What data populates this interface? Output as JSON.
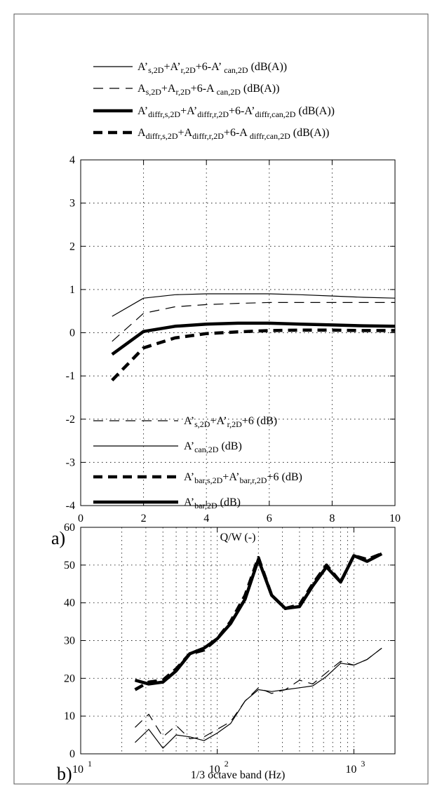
{
  "chart_data": [
    {
      "panel": "a)",
      "type": "line",
      "xlabel": "Q/W (-)",
      "ylabel": "",
      "xlim": [
        0,
        10
      ],
      "ylim": [
        -4,
        4
      ],
      "xticks": [
        "0",
        "2",
        "4",
        "6",
        "8",
        "10"
      ],
      "yticks": [
        "-4",
        "-3",
        "-2",
        "-1",
        "0",
        "1",
        "2",
        "3",
        "4"
      ],
      "grid": true,
      "legend_position": "above",
      "series": [
        {
          "style": "thin-solid",
          "legend": [
            [
              "A’",
              ""
            ],
            [
              "s,2D",
              "sub"
            ],
            [
              "+A’",
              ""
            ],
            [
              "r,2D",
              "sub"
            ],
            [
              "+6-A’",
              ""
            ],
            [
              " can,2D",
              "sub"
            ],
            [
              " (dB(A))",
              ""
            ]
          ],
          "x": [
            1,
            2,
            3,
            4,
            5,
            6,
            7,
            8,
            9,
            10
          ],
          "y": [
            0.38,
            0.8,
            0.88,
            0.9,
            0.9,
            0.9,
            0.88,
            0.85,
            0.82,
            0.8
          ]
        },
        {
          "style": "thin-dashed",
          "legend": [
            [
              "A",
              ""
            ],
            [
              "s,2D",
              "sub"
            ],
            [
              "+A",
              ""
            ],
            [
              "r,2D",
              "sub"
            ],
            [
              "+6-A",
              ""
            ],
            [
              " can,2D",
              "sub"
            ],
            [
              " (dB(A))",
              ""
            ]
          ],
          "x": [
            1,
            2,
            3,
            4,
            5,
            6,
            7,
            8,
            9,
            10
          ],
          "y": [
            -0.2,
            0.45,
            0.6,
            0.65,
            0.68,
            0.7,
            0.7,
            0.7,
            0.7,
            0.7
          ]
        },
        {
          "style": "thick-solid",
          "legend": [
            [
              "A’",
              ""
            ],
            [
              "diffr,s,2D",
              "sub"
            ],
            [
              "+A’",
              ""
            ],
            [
              "diffr,r,2D",
              "sub"
            ],
            [
              "+6-A’",
              ""
            ],
            [
              "diffr,can,2D",
              "sub"
            ],
            [
              " (dB(A))",
              ""
            ]
          ],
          "x": [
            1,
            2,
            3,
            4,
            5,
            6,
            7,
            8,
            9,
            10
          ],
          "y": [
            -0.5,
            0.03,
            0.15,
            0.2,
            0.22,
            0.22,
            0.2,
            0.18,
            0.16,
            0.15
          ]
        },
        {
          "style": "thick-dashed",
          "legend": [
            [
              "A",
              ""
            ],
            [
              "diffr,s,2D",
              "sub"
            ],
            [
              "+A",
              ""
            ],
            [
              "diffr,r,2D",
              "sub"
            ],
            [
              "+6-A",
              ""
            ],
            [
              " diffr,can,2D",
              "sub"
            ],
            [
              " (dB(A))",
              ""
            ]
          ],
          "x": [
            1,
            2,
            3,
            4,
            5,
            6,
            7,
            8,
            9,
            10
          ],
          "y": [
            -1.1,
            -0.35,
            -0.12,
            -0.02,
            0.02,
            0.05,
            0.06,
            0.06,
            0.05,
            0.05
          ]
        }
      ]
    },
    {
      "panel": "b)",
      "type": "line",
      "xscale": "log",
      "xlabel": "1/3 octave band (Hz)",
      "ylabel": "",
      "xlim": [
        10,
        2000
      ],
      "ylim": [
        0,
        60
      ],
      "xticks": [
        {
          "base": "10",
          "exp": "1"
        },
        {
          "base": "10",
          "exp": "2"
        },
        {
          "base": "10",
          "exp": "3"
        }
      ],
      "yticks": [
        "0",
        "10",
        "20",
        "30",
        "40",
        "50",
        "60"
      ],
      "grid": true,
      "legend_position": "above",
      "series": [
        {
          "style": "thin-dashed",
          "legend": [
            [
              "A’",
              ""
            ],
            [
              "s,2D",
              "sub"
            ],
            [
              "+A’",
              ""
            ],
            [
              "r,2D",
              "sub"
            ],
            [
              "+6 (dB)",
              ""
            ]
          ],
          "x": [
            25,
            31.5,
            40,
            50,
            63,
            80,
            100,
            125,
            160,
            200,
            250,
            315,
            400,
            500,
            630,
            800,
            1000,
            1250,
            1600
          ],
          "y": [
            7,
            10.5,
            4.5,
            7.5,
            4,
            4.5,
            6.5,
            8.5,
            14,
            17.5,
            16,
            17,
            19.5,
            18.5,
            21.5,
            24.5,
            23.5,
            25,
            28
          ]
        },
        {
          "style": "thin-solid",
          "legend": [
            [
              "A’",
              ""
            ],
            [
              "can,2D",
              "sub"
            ],
            [
              " (dB)",
              ""
            ]
          ],
          "x": [
            25,
            31.5,
            40,
            50,
            63,
            80,
            100,
            125,
            160,
            200,
            250,
            315,
            400,
            500,
            630,
            800,
            1000,
            1250,
            1600
          ],
          "y": [
            3,
            6.5,
            1.5,
            5,
            4.5,
            3.5,
            5.5,
            8,
            14,
            17,
            16.5,
            17,
            17.5,
            18,
            20.5,
            24,
            23.5,
            25,
            28
          ]
        },
        {
          "style": "thick-dashed",
          "legend": [
            [
              "A’",
              ""
            ],
            [
              "bar,s,2D",
              "sub"
            ],
            [
              "+A’",
              ""
            ],
            [
              "bar,r,2D",
              "sub"
            ],
            [
              "+6 (dB)",
              ""
            ]
          ],
          "x": [
            25,
            31.5,
            40,
            50,
            63,
            80,
            100,
            125,
            160,
            200,
            250,
            315,
            400,
            500,
            630,
            800,
            1000,
            1250,
            1600
          ],
          "y": [
            17,
            19,
            19.5,
            22.5,
            26.5,
            27.5,
            30.5,
            35,
            42,
            52,
            42,
            38.5,
            39.5,
            45,
            50,
            45.5,
            52.5,
            51.5,
            53
          ]
        },
        {
          "style": "thick-solid",
          "legend": [
            [
              "A’",
              ""
            ],
            [
              "bar,2D",
              "sub"
            ],
            [
              " (dB)",
              ""
            ]
          ],
          "x": [
            25,
            31.5,
            40,
            50,
            63,
            80,
            100,
            125,
            160,
            200,
            250,
            315,
            400,
            500,
            630,
            800,
            1000,
            1250,
            1600
          ],
          "y": [
            19.5,
            18.5,
            19,
            22,
            26.5,
            28,
            30.5,
            34.5,
            41,
            51.5,
            42,
            38.5,
            39,
            44.5,
            49.5,
            45.5,
            52.5,
            51,
            53
          ]
        }
      ]
    }
  ]
}
